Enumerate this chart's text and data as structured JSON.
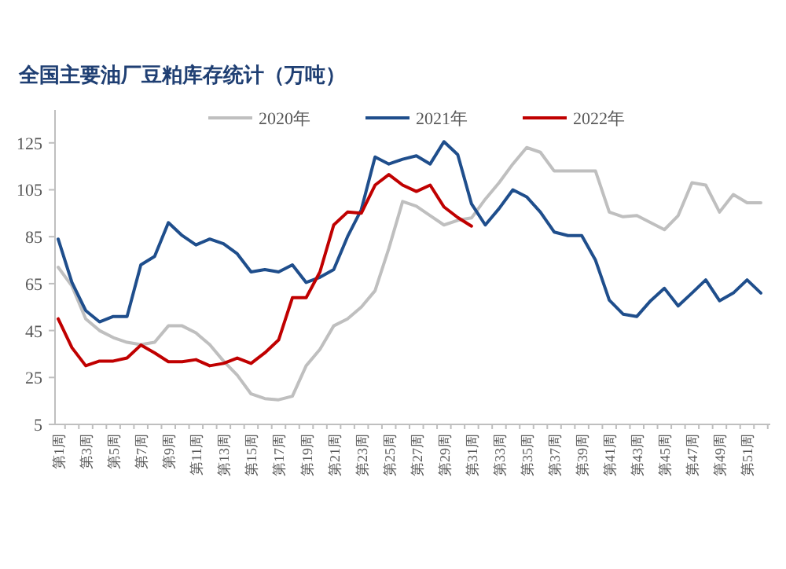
{
  "chart_data": {
    "type": "line",
    "title": "全国主要油厂豆粕库存统计（万吨）",
    "categories": [
      "第1周",
      null,
      "第3周",
      null,
      "第5周",
      null,
      "第7周",
      null,
      "第9周",
      null,
      "第11周",
      null,
      "第13周",
      null,
      "第15周",
      null,
      "第17周",
      null,
      "第19周",
      null,
      "第21周",
      null,
      "第23周",
      null,
      "第25周",
      null,
      "第27周",
      null,
      "第29周",
      null,
      "第31周",
      null,
      "第33周",
      null,
      "第35周",
      null,
      "第37周",
      null,
      "第39周",
      null,
      "第41周",
      null,
      "第43周",
      null,
      "第45周",
      null,
      "第47周",
      null,
      "第49周",
      null,
      "第51周",
      null
    ],
    "series": [
      {
        "name": "2020年",
        "color": "#bfbfbf",
        "values": [
          72,
          64,
          50,
          45,
          42,
          40,
          39,
          40,
          47,
          47,
          44,
          39,
          32,
          26,
          18,
          16,
          15.5,
          17,
          30,
          37,
          47,
          50,
          55,
          62,
          80,
          100,
          98,
          94,
          90,
          92,
          93,
          101,
          108,
          116,
          123,
          121,
          113,
          113,
          113,
          113,
          95.5,
          93.5,
          94,
          91,
          88,
          94,
          108,
          107,
          95.5,
          103,
          99.5,
          99.5
        ]
      },
      {
        "name": "2021年",
        "color": "#1f4e8c",
        "values": [
          84,
          65.5,
          53.5,
          48.7,
          51,
          51,
          73,
          76.6,
          91,
          85.5,
          81.5,
          84,
          82,
          77.7,
          70,
          71,
          70,
          73,
          65.5,
          67.7,
          71,
          85,
          96.5,
          119,
          116,
          118,
          119.5,
          116,
          125.5,
          120,
          99,
          90,
          97,
          105,
          102,
          95.5,
          87,
          85.5,
          85.5,
          75,
          58,
          52,
          51,
          57.7,
          63,
          55.5,
          61,
          66.6,
          57.7,
          61,
          66.6,
          61
        ]
      },
      {
        "name": "2022年",
        "color": "#c00000",
        "values": [
          50,
          37.7,
          30,
          32,
          32,
          33.3,
          38.8,
          35.5,
          31.7,
          31.7,
          32.6,
          30,
          31,
          33.3,
          31,
          35.5,
          41,
          59,
          59,
          70,
          90,
          95.5,
          95,
          107,
          111.5,
          107,
          104.3,
          107,
          97.7,
          93.2,
          89.5,
          null,
          null,
          null,
          null,
          null,
          null,
          null,
          null,
          null,
          null,
          null,
          null,
          null,
          null,
          null,
          null,
          null,
          null,
          null,
          null,
          null
        ]
      }
    ],
    "ylim": [
      5,
      139
    ],
    "yticks": [
      5,
      25,
      45,
      65,
      85,
      105,
      125
    ],
    "legend": "top",
    "marker": "none"
  }
}
